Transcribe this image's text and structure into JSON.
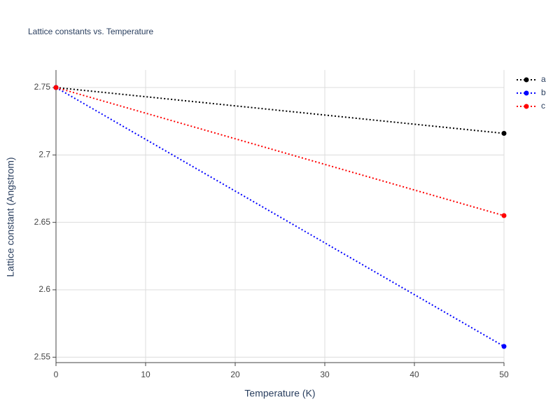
{
  "chart_data": {
    "type": "line",
    "title": "Lattice constants vs. Temperature",
    "x_label": "Temperature (K)",
    "y_label": "Lattice constant (Angstrom)",
    "x": [
      0,
      50
    ],
    "series": [
      {
        "name": "a",
        "color": "#000000",
        "values": [
          2.75,
          2.716
        ]
      },
      {
        "name": "b",
        "color": "#0000ff",
        "values": [
          2.75,
          2.558
        ]
      },
      {
        "name": "c",
        "color": "#ff0000",
        "values": [
          2.75,
          2.655
        ]
      }
    ],
    "xlim": [
      0,
      50
    ],
    "xticks": [
      0,
      10,
      20,
      30,
      40,
      50
    ],
    "ylim": [
      2.546,
      2.763
    ],
    "yticks": [
      2.55,
      2.6,
      2.65,
      2.7,
      2.75
    ],
    "grid": true,
    "legend_position": "right"
  }
}
